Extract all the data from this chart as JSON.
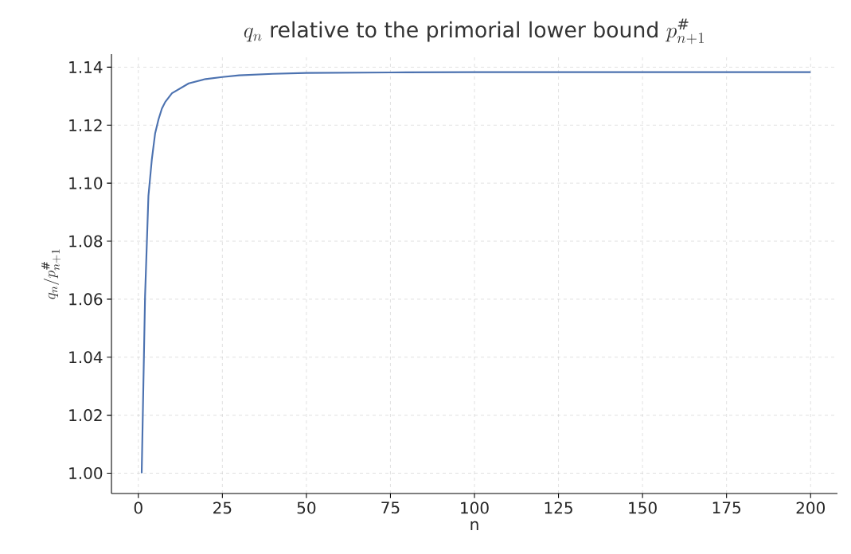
{
  "chart_data": {
    "type": "line",
    "title": "q_n \\text{ relative to the primorial lower bound } p_{n+1}^{\\#}",
    "xlabel": "n",
    "ylabel": "q_n/p_{n+1}^{\\#}",
    "x": [
      1,
      2,
      3,
      4,
      5,
      6,
      7,
      8,
      10,
      15,
      20,
      25,
      30,
      40,
      50,
      75,
      100,
      150,
      200
    ],
    "series": [
      {
        "color": "#4c72b0",
        "values": [
          1.0,
          1.061,
          1.0956,
          1.108,
          1.1172,
          1.122,
          1.1257,
          1.128,
          1.131,
          1.1344,
          1.1359,
          1.1366,
          1.1372,
          1.1377,
          1.138,
          1.1382,
          1.1383,
          1.1383,
          1.1383
        ]
      }
    ],
    "xlim": [
      -8,
      208
    ],
    "ylim": [
      0.993,
      1.1445
    ],
    "xticks": [
      0,
      25,
      50,
      75,
      100,
      125,
      150,
      175,
      200
    ],
    "yticks": [
      {
        "value": 1.0,
        "label": "1.00"
      },
      {
        "value": 1.02,
        "label": "1.02"
      },
      {
        "value": 1.04,
        "label": "1.04"
      },
      {
        "value": 1.06,
        "label": "1.06"
      },
      {
        "value": 1.08,
        "label": "1.08"
      },
      {
        "value": 1.1,
        "label": "1.10"
      },
      {
        "value": 1.12,
        "label": "1.12"
      },
      {
        "value": 1.14,
        "label": "1.14"
      }
    ],
    "grid": true,
    "line_style": "solid"
  }
}
